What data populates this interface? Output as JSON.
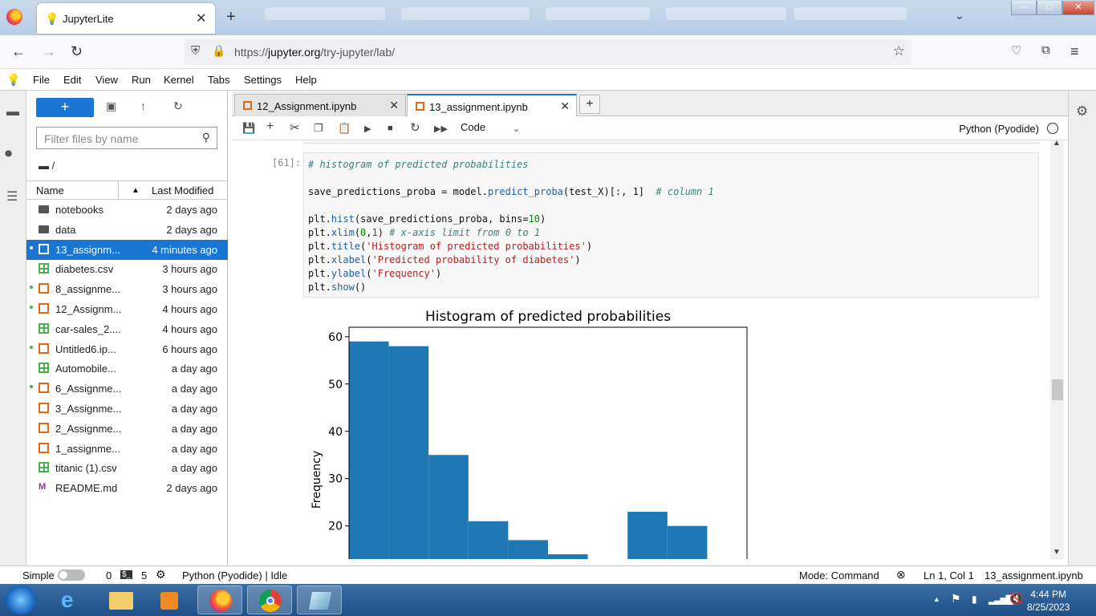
{
  "browser": {
    "tab_title": "JupyterLite",
    "tab_favicon": "lightbulb-icon",
    "url_prefix": "https://",
    "url_host": "jupyter.org",
    "url_path": "/try-jupyter/lab/"
  },
  "menu": [
    "File",
    "Edit",
    "View",
    "Run",
    "Kernel",
    "Tabs",
    "Settings",
    "Help"
  ],
  "filebrowser": {
    "new_label": "+",
    "filter_placeholder": "Filter files by name",
    "breadcrumb": "/",
    "col_name": "Name",
    "col_modified": "Last Modified",
    "files": [
      {
        "name": "notebooks",
        "modified": "2 days ago",
        "type": "folder",
        "running": false
      },
      {
        "name": "data",
        "modified": "2 days ago",
        "type": "folder",
        "running": false
      },
      {
        "name": "13_assignm...",
        "modified": "4 minutes ago",
        "type": "notebook",
        "running": true,
        "selected": true
      },
      {
        "name": "diabetes.csv",
        "modified": "3 hours ago",
        "type": "csv",
        "running": false
      },
      {
        "name": "8_assignme...",
        "modified": "3 hours ago",
        "type": "notebook",
        "running": true
      },
      {
        "name": "12_Assignm...",
        "modified": "4 hours ago",
        "type": "notebook",
        "running": true
      },
      {
        "name": "car-sales_2....",
        "modified": "4 hours ago",
        "type": "csv",
        "running": false
      },
      {
        "name": "Untitled6.ip...",
        "modified": "6 hours ago",
        "type": "notebook",
        "running": true
      },
      {
        "name": "Automobile...",
        "modified": "a day ago",
        "type": "csv",
        "running": false
      },
      {
        "name": "6_Assignme...",
        "modified": "a day ago",
        "type": "notebook",
        "running": true
      },
      {
        "name": "3_Assignme...",
        "modified": "a day ago",
        "type": "notebook",
        "running": false
      },
      {
        "name": "2_Assignme...",
        "modified": "a day ago",
        "type": "notebook",
        "running": false
      },
      {
        "name": "1_assignme...",
        "modified": "a day ago",
        "type": "notebook",
        "running": false
      },
      {
        "name": "titanic (1).csv",
        "modified": "a day ago",
        "type": "csv",
        "running": false
      },
      {
        "name": "README.md",
        "modified": "2 days ago",
        "type": "markdown",
        "running": false
      }
    ]
  },
  "doc_tabs": [
    {
      "label": "12_Assignment.ipynb",
      "active": false
    },
    {
      "label": "13_assignment.ipynb",
      "active": true
    }
  ],
  "toolbar": {
    "cell_type": "Code",
    "kernel": "Python (Pyodide)"
  },
  "cell": {
    "prompt": "[61]:",
    "code_lines": [
      "# histogram of predicted probabilities",
      "",
      "save_predictions_proba = model.predict_proba(test_X)[:, 1]  # column 1",
      "",
      "plt.hist(save_predictions_proba, bins=10)",
      "plt.xlim(0,1) # x-axis limit from 0 to 1",
      "plt.title('Histogram of predicted probabilities')",
      "plt.xlabel('Predicted probability of diabetes')",
      "plt.ylabel('Frequency')",
      "plt.show()"
    ]
  },
  "chart_data": {
    "type": "bar",
    "title": "Histogram of predicted probabilities",
    "xlabel": "",
    "ylabel": "Frequency",
    "xlim": [
      0,
      1
    ],
    "ylim": [
      0,
      62
    ],
    "bin_edges": [
      0.0,
      0.1,
      0.2,
      0.3,
      0.4,
      0.5,
      0.6,
      0.7,
      0.8,
      0.9,
      1.0
    ],
    "values": [
      59,
      58,
      35,
      21,
      17,
      14,
      13,
      23,
      20,
      0
    ],
    "yticks": [
      20,
      30,
      40,
      50,
      60
    ],
    "color": "#1f77b4",
    "visible_y_min": 13
  },
  "statusbar": {
    "mode_label": "Simple",
    "terminals": "0",
    "kernels": "5",
    "kernel_status": "Python (Pyodide) | Idle",
    "mode": "Mode: Command",
    "position": "Ln 1, Col 1",
    "filename": "13_assignment.ipynb"
  },
  "taskbar": {
    "time": "4:44 PM",
    "date": "8/25/2023"
  }
}
